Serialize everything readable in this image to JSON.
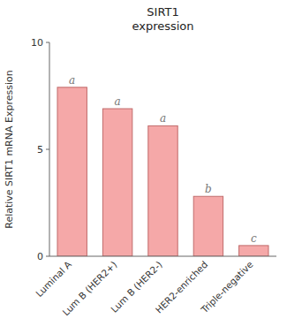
{
  "chart_data": {
    "type": "bar",
    "title": "SIRT1\nexpression",
    "categories": [
      "Luminal A",
      "Lum B (HER2+)",
      "Lum B (HER2-)",
      "HER2-enriched",
      "Triple-negative"
    ],
    "values": [
      7.9,
      6.9,
      6.1,
      2.8,
      0.5
    ],
    "annotations": [
      "a",
      "a",
      "a",
      "b",
      "c"
    ],
    "y_label": "Relative SIRT1 mRNA Expression",
    "color": "#f5a8a8",
    "ylim": [
      0,
      10
    ],
    "yticks": [
      0,
      5,
      10
    ],
    "grid": false
  }
}
